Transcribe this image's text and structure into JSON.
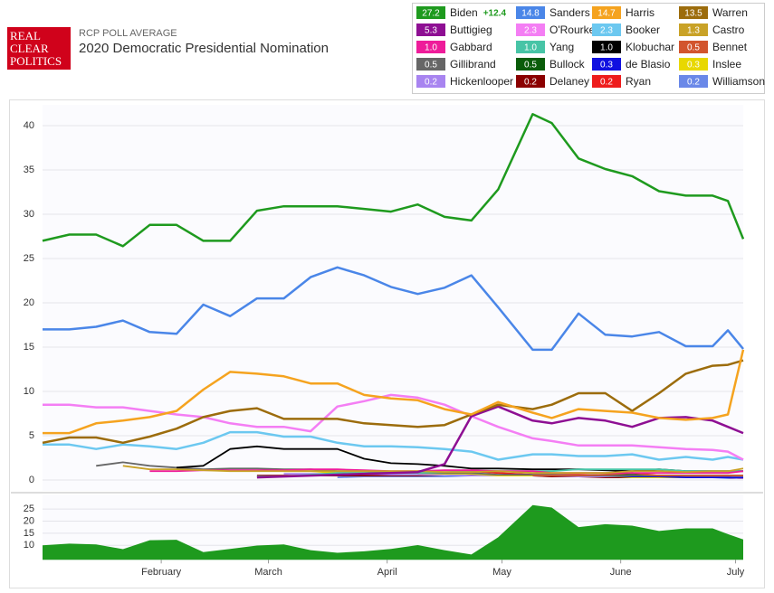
{
  "header": {
    "logo": [
      "REAL",
      "CLEAR",
      "POLITICS"
    ],
    "kicker": "RCP POLL AVERAGE",
    "title": "2020 Democratic Presidential Nomination"
  },
  "chart_data": [
    {
      "type": "line",
      "lead_label": "+12.4",
      "x": [
        0,
        7,
        14,
        21,
        28,
        35,
        42,
        49,
        56,
        63,
        70,
        77,
        84,
        91,
        98,
        105,
        112,
        119,
        128,
        133,
        140,
        147,
        154,
        161,
        168,
        175,
        179,
        183
      ],
      "xlim": [
        0,
        183
      ],
      "ylim": [
        -1,
        42
      ],
      "yticks": [
        0,
        5,
        10,
        15,
        20,
        25,
        30,
        35,
        40
      ],
      "grid": true,
      "series": [
        {
          "name": "Biden",
          "color": "#1e9a1e",
          "legend_label": "27.2",
          "values": [
            27.0,
            27.7,
            27.7,
            26.4,
            28.8,
            28.8,
            27.0,
            27.0,
            30.4,
            30.9,
            30.9,
            30.9,
            30.6,
            30.3,
            31.1,
            29.7,
            29.3,
            32.8,
            41.3,
            40.3,
            36.3,
            35.1,
            34.3,
            32.6,
            32.1,
            32.1,
            31.5,
            27.2
          ]
        },
        {
          "name": "Sanders",
          "color": "#4a86e8",
          "legend_label": "14.8",
          "values": [
            17.0,
            17.0,
            17.3,
            18.0,
            16.7,
            16.5,
            19.8,
            18.5,
            20.5,
            20.5,
            22.9,
            24.0,
            23.1,
            21.8,
            21.0,
            21.7,
            23.1,
            19.5,
            14.7,
            14.7,
            18.8,
            16.4,
            16.2,
            16.7,
            15.1,
            15.1,
            16.9,
            14.8
          ]
        },
        {
          "name": "Harris",
          "color": "#f5a31f",
          "legend_label": "14.7",
          "values": [
            5.3,
            5.3,
            6.4,
            6.7,
            7.1,
            7.8,
            10.2,
            12.2,
            12.0,
            11.7,
            10.9,
            10.9,
            9.6,
            9.2,
            9.0,
            8.0,
            7.4,
            8.8,
            7.6,
            7.0,
            8.0,
            7.8,
            7.6,
            7.0,
            6.8,
            7.0,
            7.4,
            14.7
          ]
        },
        {
          "name": "Warren",
          "color": "#9c6c0c",
          "legend_label": "13.5",
          "values": [
            4.2,
            4.8,
            4.8,
            4.2,
            4.9,
            5.8,
            7.1,
            7.8,
            8.1,
            6.9,
            6.9,
            6.9,
            6.4,
            6.2,
            6.0,
            6.2,
            7.4,
            8.5,
            8.0,
            8.5,
            9.8,
            9.8,
            7.8,
            9.8,
            12.0,
            12.9,
            13.0,
            13.5
          ]
        },
        {
          "name": "Buttigieg",
          "color": "#8e0f93",
          "legend_label": "5.3",
          "values": [
            null,
            null,
            null,
            null,
            null,
            null,
            null,
            null,
            0.3,
            0.4,
            0.5,
            0.6,
            0.7,
            0.8,
            0.9,
            1.8,
            7.2,
            8.3,
            6.7,
            6.4,
            7.0,
            6.7,
            6.0,
            7.0,
            7.1,
            6.7,
            6.0,
            5.3
          ]
        },
        {
          "name": "O'Rourke",
          "color": "#f47ef4",
          "legend_label": "2.3",
          "values": [
            8.5,
            8.5,
            8.2,
            8.2,
            7.8,
            7.4,
            7.1,
            6.4,
            6.0,
            6.0,
            5.5,
            8.3,
            8.9,
            9.6,
            9.3,
            8.5,
            7.2,
            6.0,
            4.7,
            4.4,
            3.9,
            3.9,
            3.9,
            3.7,
            3.5,
            3.4,
            3.2,
            2.3
          ]
        },
        {
          "name": "Booker",
          "color": "#6cc8f0",
          "legend_label": "2.3",
          "values": [
            4.0,
            4.0,
            3.5,
            4.0,
            3.8,
            3.5,
            4.2,
            5.4,
            5.4,
            4.9,
            4.9,
            4.2,
            3.8,
            3.8,
            3.7,
            3.5,
            3.2,
            2.3,
            2.9,
            2.9,
            2.7,
            2.7,
            2.9,
            2.3,
            2.6,
            2.3,
            2.6,
            2.3
          ]
        },
        {
          "name": "Castro",
          "color": "#c9a227",
          "legend_label": "1.3",
          "values": [
            null,
            null,
            null,
            1.6,
            1.2,
            1.2,
            1.1,
            1.0,
            1.0,
            1.0,
            1.0,
            1.0,
            1.0,
            1.0,
            1.0,
            0.9,
            0.9,
            1.0,
            0.8,
            0.8,
            0.8,
            0.8,
            1.0,
            1.0,
            0.9,
            1.0,
            1.0,
            1.3
          ]
        },
        {
          "name": "Gabbard",
          "color": "#ee1c9a",
          "legend_label": "1.0",
          "values": [
            null,
            null,
            null,
            null,
            1.0,
            1.0,
            1.1,
            1.1,
            1.1,
            1.1,
            1.2,
            1.2,
            1.1,
            1.0,
            1.0,
            1.1,
            1.1,
            1.0,
            1.0,
            0.8,
            0.8,
            0.8,
            0.8,
            0.8,
            0.8,
            0.8,
            0.8,
            1.0
          ]
        },
        {
          "name": "Yang",
          "color": "#47c4a6",
          "legend_label": "1.0",
          "values": [
            null,
            null,
            null,
            null,
            null,
            null,
            null,
            null,
            0.4,
            0.4,
            0.6,
            0.8,
            0.8,
            0.8,
            0.8,
            0.9,
            1.0,
            1.0,
            1.0,
            1.0,
            1.2,
            1.2,
            1.2,
            1.2,
            1.0,
            1.0,
            1.0,
            1.0
          ]
        },
        {
          "name": "Klobuchar",
          "color": "#000000",
          "legend_label": "1.0",
          "values": [
            null,
            null,
            null,
            null,
            null,
            1.4,
            1.6,
            3.5,
            3.8,
            3.5,
            3.5,
            3.5,
            2.4,
            1.9,
            1.8,
            1.6,
            1.3,
            1.3,
            1.2,
            1.2,
            1.2,
            1.1,
            1.0,
            1.2,
            1.0,
            1.0,
            1.0,
            1.0
          ]
        },
        {
          "name": "Bennet",
          "color": "#d2552e",
          "legend_label": "0.5",
          "values": [
            null,
            null,
            null,
            null,
            null,
            null,
            null,
            null,
            null,
            null,
            null,
            null,
            null,
            null,
            null,
            null,
            null,
            null,
            0.5,
            0.5,
            0.5,
            0.6,
            0.8,
            0.5,
            0.5,
            0.5,
            0.5,
            0.5
          ]
        },
        {
          "name": "Gillibrand",
          "color": "#666666",
          "legend_label": "0.5",
          "values": [
            null,
            null,
            1.6,
            2.0,
            1.6,
            1.4,
            1.2,
            1.3,
            1.3,
            1.2,
            1.2,
            1.0,
            1.0,
            0.8,
            0.8,
            0.8,
            0.8,
            0.6,
            0.6,
            0.6,
            0.5,
            0.5,
            0.5,
            0.5,
            0.5,
            0.5,
            0.5,
            0.5
          ]
        },
        {
          "name": "Bullock",
          "color": "#0a5c0a",
          "legend_label": "0.5",
          "values": [
            null,
            null,
            null,
            null,
            null,
            null,
            null,
            null,
            null,
            null,
            null,
            null,
            null,
            null,
            null,
            null,
            null,
            null,
            null,
            0.5,
            0.5,
            0.6,
            0.6,
            0.5,
            0.5,
            0.5,
            0.5,
            0.5
          ]
        },
        {
          "name": "de Blasio",
          "color": "#1010e0",
          "legend_label": "0.3",
          "values": [
            null,
            null,
            null,
            null,
            null,
            null,
            null,
            null,
            null,
            null,
            null,
            null,
            null,
            null,
            null,
            null,
            null,
            null,
            null,
            null,
            0.5,
            0.5,
            0.4,
            0.4,
            0.3,
            0.3,
            0.3,
            0.3
          ]
        },
        {
          "name": "Inslee",
          "color": "#e8d800",
          "legend_label": "0.3",
          "values": [
            null,
            null,
            null,
            null,
            null,
            null,
            null,
            null,
            null,
            1.0,
            1.0,
            0.8,
            0.8,
            0.8,
            0.8,
            0.7,
            0.7,
            0.5,
            0.5,
            0.5,
            0.5,
            0.5,
            0.3,
            0.3,
            0.3,
            0.3,
            0.3,
            0.3
          ]
        },
        {
          "name": "Hickenlooper",
          "color": "#a884f0",
          "legend_label": "0.2",
          "values": [
            null,
            null,
            null,
            null,
            null,
            null,
            null,
            null,
            null,
            0.7,
            0.7,
            0.7,
            0.7,
            0.6,
            0.6,
            0.6,
            0.5,
            0.5,
            0.5,
            0.5,
            0.4,
            0.4,
            0.4,
            0.4,
            0.3,
            0.3,
            0.3,
            0.2
          ]
        },
        {
          "name": "Delaney",
          "color": "#8b0000",
          "legend_label": "0.2",
          "values": [
            null,
            null,
            null,
            null,
            null,
            null,
            null,
            null,
            0.5,
            0.5,
            0.5,
            0.5,
            0.5,
            0.5,
            0.5,
            0.6,
            0.6,
            0.5,
            0.5,
            0.4,
            0.4,
            0.3,
            0.3,
            0.3,
            0.3,
            0.3,
            0.3,
            0.2
          ]
        },
        {
          "name": "Ryan",
          "color": "#ee1c1c",
          "legend_label": "0.2",
          "values": [
            null,
            null,
            null,
            null,
            null,
            null,
            null,
            null,
            null,
            null,
            null,
            null,
            null,
            null,
            0.7,
            0.8,
            1.0,
            0.8,
            0.6,
            0.6,
            0.6,
            0.5,
            0.5,
            0.5,
            0.4,
            0.3,
            0.3,
            0.2
          ]
        },
        {
          "name": "Williamson",
          "color": "#6a88e8",
          "legend_label": "0.2",
          "values": [
            null,
            null,
            null,
            null,
            null,
            null,
            null,
            null,
            null,
            null,
            null,
            0.3,
            0.4,
            0.4,
            0.4,
            0.4,
            0.5,
            0.5,
            0.5,
            0.4,
            0.4,
            0.4,
            0.4,
            0.4,
            0.3,
            0.3,
            0.2,
            0.2
          ]
        }
      ]
    },
    {
      "type": "area",
      "color": "#1e9a1e",
      "x": [
        0,
        7,
        14,
        21,
        28,
        35,
        42,
        49,
        56,
        63,
        70,
        77,
        84,
        91,
        98,
        105,
        112,
        119,
        128,
        133,
        140,
        147,
        154,
        161,
        168,
        175,
        179,
        183
      ],
      "values": [
        10.0,
        10.7,
        10.4,
        8.4,
        12.1,
        12.3,
        7.2,
        8.5,
        9.9,
        10.4,
        8.0,
        6.9,
        7.5,
        8.5,
        10.1,
        8.0,
        6.2,
        13.3,
        26.6,
        25.6,
        17.5,
        18.7,
        18.1,
        15.9,
        17.0,
        17.0,
        14.6,
        12.4
      ],
      "xlim": [
        0,
        183
      ],
      "ylim": [
        4,
        31
      ],
      "yticks": [
        10,
        15,
        20,
        25
      ],
      "grid": true,
      "xticks": [
        {
          "value": 31,
          "label": "February"
        },
        {
          "value": 59,
          "label": "March"
        },
        {
          "value": 90,
          "label": "April"
        },
        {
          "value": 120,
          "label": "May"
        },
        {
          "value": 151,
          "label": "June"
        },
        {
          "value": 181,
          "label": "July"
        }
      ]
    }
  ]
}
